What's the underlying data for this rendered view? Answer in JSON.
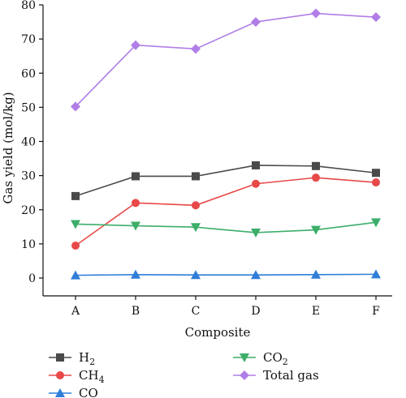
{
  "chart_data": {
    "type": "line",
    "xlabel": "Composite",
    "ylabel": "Gas yield (mol/kg)",
    "categories": [
      "A",
      "B",
      "C",
      "D",
      "E",
      "F"
    ],
    "ylim": [
      0,
      80
    ],
    "yticks": [
      0,
      10,
      20,
      30,
      40,
      50,
      60,
      70,
      80
    ],
    "grid": false,
    "legend_position": "bottom",
    "series": [
      {
        "name": "H2",
        "name_sub": "2",
        "name_base": "H",
        "color": "#4a4a4a",
        "marker": "square",
        "values": [
          24.0,
          29.8,
          29.8,
          33.0,
          32.8,
          30.8
        ]
      },
      {
        "name": "CH4",
        "name_sub": "4",
        "name_base": "CH",
        "color": "#e84848",
        "marker": "circle",
        "values": [
          9.5,
          22.0,
          21.3,
          27.6,
          29.4,
          28.0
        ]
      },
      {
        "name": "CO",
        "name_sub": "",
        "name_base": "CO",
        "color": "#2f7ed8",
        "marker": "triangle-up",
        "values": [
          0.8,
          1.0,
          0.9,
          0.9,
          1.0,
          1.1
        ]
      },
      {
        "name": "CO2",
        "name_sub": "2",
        "name_base": "CO",
        "color": "#3cae6a",
        "marker": "triangle-down",
        "values": [
          15.8,
          15.3,
          14.9,
          13.3,
          14.1,
          16.3
        ]
      },
      {
        "name": "Total gas",
        "name_sub": "",
        "name_base": "Total gas",
        "color": "#b07ee6",
        "marker": "diamond",
        "values": [
          50.2,
          68.2,
          67.1,
          75.0,
          77.5,
          76.4
        ]
      }
    ]
  }
}
